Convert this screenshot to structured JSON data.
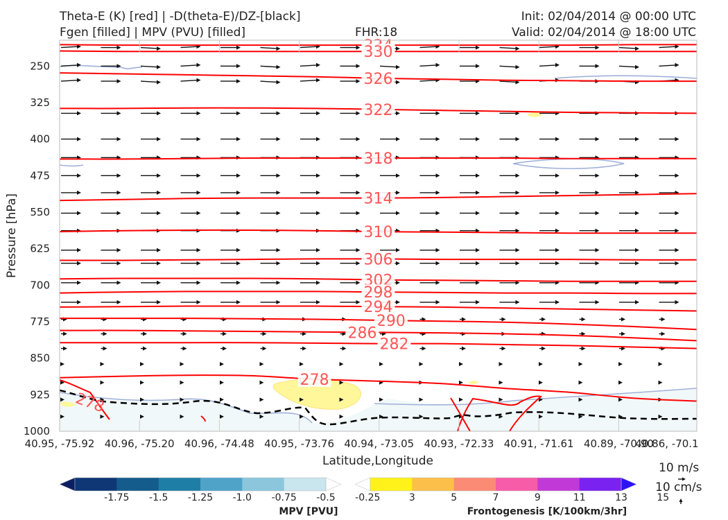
{
  "header": {
    "title_line1": "Theta-E (K) [red] | -D(theta-E)/DZ-[black]",
    "title_line2": "Fgen [filled] | MPV (PVU) [filled]",
    "fhr": "FHR:18",
    "init": "Init: 02/04/2014 @ 00:00 UTC",
    "valid": "Valid: 02/04/2014 @ 18:00 UTC"
  },
  "colors": {
    "theta_e": "#ff0000",
    "theta_e_label": "#ff5555",
    "arrows": "#111111",
    "mpv_contour": "#a0b0d8",
    "mpv_fill_light": "#f1f8f9",
    "fgen_fill": "#fff79a",
    "dashed": "#000000"
  },
  "chart_data": {
    "type": "cross-section",
    "xlabel": "Latitude,Longitude",
    "ylabel": "Pressure [hPa]",
    "x_ticks": [
      "40.95, -75.92",
      "40.96, -75.20",
      "40.96, -74.48",
      "40.95, -73.76",
      "40.94, -73.05",
      "40.93, -72.33",
      "40.91, -71.61",
      "40.89, -70.90",
      "40.86, -70.1"
    ],
    "y_ticks": [
      250,
      325,
      400,
      475,
      550,
      625,
      700,
      775,
      850,
      925,
      1000
    ],
    "ylim": [
      1000,
      200
    ],
    "theta_e_contours": [
      {
        "label": "334",
        "level": 334,
        "p": [
          206,
          207,
          207,
          207,
          207,
          207,
          207,
          207,
          207,
          206,
          206
        ]
      },
      {
        "label": "330",
        "level": 330,
        "p": [
          219,
          220,
          220,
          220,
          220,
          220,
          220,
          220,
          220,
          220,
          220
        ]
      },
      {
        "label": "326",
        "level": 326,
        "p": [
          264,
          266,
          268,
          270,
          272,
          275,
          277,
          279,
          280,
          281,
          281
        ]
      },
      {
        "label": "322",
        "level": 322,
        "p": [
          337,
          337,
          336,
          336,
          337,
          339,
          341,
          343,
          345,
          346,
          347
        ]
      },
      {
        "label": "318",
        "level": 318,
        "p": [
          441,
          441,
          440,
          439,
          439,
          439,
          439,
          439,
          440,
          440,
          440
        ]
      },
      {
        "label": "314",
        "level": 314,
        "p": [
          526,
          524,
          522,
          521,
          521,
          521,
          520,
          518,
          516,
          514,
          512
        ]
      },
      {
        "label": "310",
        "level": 310,
        "p": [
          590,
          588,
          587,
          587,
          588,
          590,
          591,
          592,
          593,
          593,
          593
        ]
      },
      {
        "label": "306",
        "level": 306,
        "p": [
          649,
          649,
          648,
          647,
          646,
          646,
          647,
          647,
          647,
          648,
          648
        ]
      },
      {
        "label": "302",
        "level": 302,
        "p": [
          687,
          686,
          686,
          686,
          687,
          689,
          690,
          691,
          692,
          692,
          692
        ]
      },
      {
        "label": "298",
        "level": 298,
        "p": [
          716,
          714,
          713,
          713,
          713,
          714,
          715,
          716,
          716,
          717,
          717
        ]
      },
      {
        "label": "294",
        "level": 294,
        "p": [
          745,
          744,
          743,
          743,
          743,
          744,
          745,
          747,
          749,
          751,
          753
        ]
      },
      {
        "label": "290",
        "level": 290,
        "p": [
          768,
          768,
          768,
          769,
          770,
          772,
          774,
          776,
          780,
          785,
          791
        ]
      },
      {
        "label": "286",
        "level": 286,
        "p": [
          793,
          793,
          794,
          795,
          796,
          797,
          798,
          800,
          803,
          808,
          814
        ]
      },
      {
        "label": "282",
        "level": 282,
        "p": [
          818,
          818,
          818,
          818,
          819,
          820,
          820,
          822,
          824,
          827,
          830
        ]
      },
      {
        "label": "278",
        "level": 278,
        "p": [
          890,
          887,
          885,
          886,
          893,
          897,
          902,
          912,
          920,
          932,
          938
        ]
      }
    ],
    "wind_rows_hpa": [
      212,
      250,
      281,
      347,
      400,
      438,
      475,
      510,
      552,
      588,
      628,
      655,
      695,
      735,
      770,
      800,
      830,
      862,
      900,
      935,
      970
    ]
  },
  "colorbars": {
    "mpv": {
      "label": "MPV [PVU]",
      "ticks": [
        "-1.75",
        "-1.5",
        "-1.25",
        "-1.0",
        "-0.75",
        "-0.5",
        "-0.25"
      ],
      "colors": [
        "#0d1f63",
        "#0f3776",
        "#145c8c",
        "#1e7ea5",
        "#4fa3c8",
        "#8bc6dd",
        "#c9e5ee",
        "#ffffff"
      ]
    },
    "fgen": {
      "label": "Frontogenesis [K/100km/3hr]",
      "ticks": [
        "3",
        "5",
        "7",
        "9",
        "11",
        "13",
        "15"
      ],
      "colors": [
        "#ffffff",
        "#fff21a",
        "#fcc04a",
        "#fb8b74",
        "#f75ca8",
        "#c13ad8",
        "#7a22ef",
        "#2c14f5"
      ]
    }
  },
  "wind_legend": {
    "horizontal": "10 m/s",
    "vertical": "10 cm/s"
  }
}
